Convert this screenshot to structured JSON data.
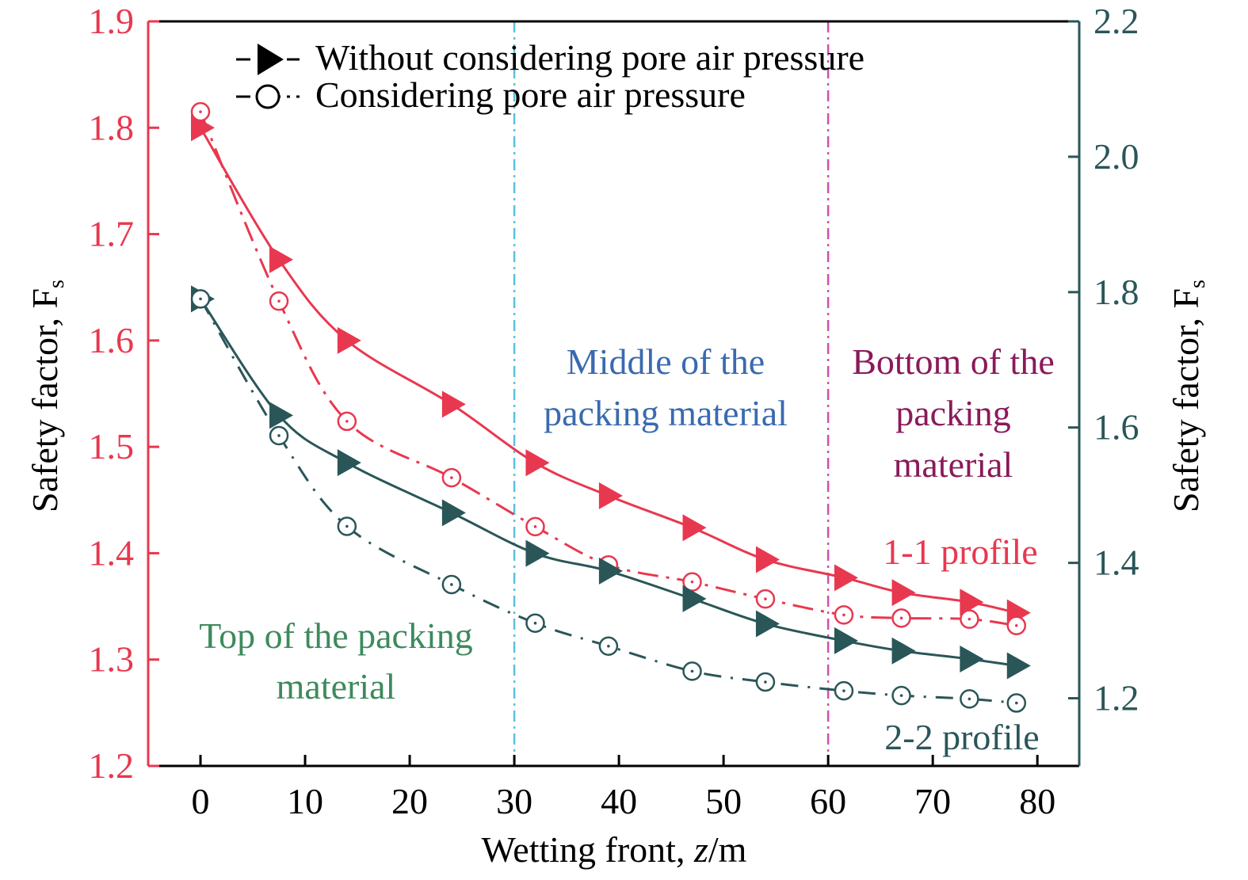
{
  "chart_data": {
    "type": "line",
    "xlabel": "Wetting front, z/m",
    "ylabel_left": "Safety factor, F",
    "ylabel_left_sub": "s",
    "ylabel_right": "Safety factor, F",
    "ylabel_right_sub": "s",
    "xlim": [
      -5,
      84
    ],
    "ylim_left": [
      1.2,
      1.9
    ],
    "ylim_right": [
      1.1,
      2.2
    ],
    "x_ticks": [
      "0",
      "10",
      "20",
      "30",
      "40",
      "50",
      "60",
      "70",
      "80"
    ],
    "y_ticks_left": [
      "1.2",
      "1.3",
      "1.4",
      "1.5",
      "1.6",
      "1.7",
      "1.8",
      "1.9"
    ],
    "y_ticks_right": [
      "1.2",
      "1.4",
      "1.6",
      "1.8",
      "2.0",
      "2.2"
    ],
    "colors": {
      "profile_1_1": "#e8384f",
      "profile_2_2": "#2a5658",
      "left_axis": "#e8384f",
      "right_axis": "#2a5658",
      "line_30": "#5bc0de",
      "line_60": "#d050b0",
      "top_text": "#3d8a5c",
      "middle_text": "#3a6ab0",
      "bottom_text": "#8a1a5a"
    },
    "legend": [
      {
        "label": "Without considering pore air pressure",
        "marker": "triangle",
        "style": "dash"
      },
      {
        "label": "Considering pore air pressure",
        "marker": "circle",
        "style": "dashdot"
      }
    ],
    "vertical_lines": [
      30,
      60
    ],
    "annotations": {
      "top": [
        "Top of the packing",
        "material"
      ],
      "middle": [
        "Middle of the",
        "packing material"
      ],
      "bottom": [
        "Bottom of the",
        "packing",
        "material"
      ],
      "profile_1": "1-1 profile",
      "profile_2": "2-2 profile"
    },
    "series": [
      {
        "profile": "1-1",
        "marker": "triangle",
        "axis": "left",
        "x": [
          0,
          7.5,
          14,
          24,
          32,
          39,
          47,
          54,
          61.5,
          67,
          73.5,
          78
        ],
        "y": [
          1.8,
          1.676,
          1.6,
          1.54,
          1.485,
          1.454,
          1.424,
          1.394,
          1.377,
          1.363,
          1.354,
          1.344
        ]
      },
      {
        "profile": "1-1",
        "marker": "circle",
        "axis": "left",
        "x": [
          0,
          7.5,
          14,
          24,
          32,
          39,
          47,
          54,
          61.5,
          67,
          73.5,
          78
        ],
        "y": [
          1.815,
          1.637,
          1.524,
          1.471,
          1.425,
          1.389,
          1.373,
          1.357,
          1.342,
          1.339,
          1.338,
          1.332
        ]
      },
      {
        "profile": "2-2",
        "marker": "triangle",
        "axis": "right",
        "x": [
          0,
          7.5,
          14,
          24,
          32,
          39,
          47,
          54,
          61.5,
          67,
          73.5,
          78
        ],
        "y": [
          1.79,
          1.618,
          1.548,
          1.474,
          1.414,
          1.388,
          1.347,
          1.31,
          1.285,
          1.27,
          1.258,
          1.248
        ]
      },
      {
        "profile": "2-2",
        "marker": "circle",
        "axis": "right",
        "x": [
          0,
          7.5,
          14,
          24,
          32,
          39,
          47,
          54,
          61.5,
          67,
          73.5,
          78
        ],
        "y": [
          1.79,
          1.588,
          1.454,
          1.368,
          1.311,
          1.277,
          1.24,
          1.224,
          1.211,
          1.204,
          1.199,
          1.193
        ]
      }
    ]
  }
}
